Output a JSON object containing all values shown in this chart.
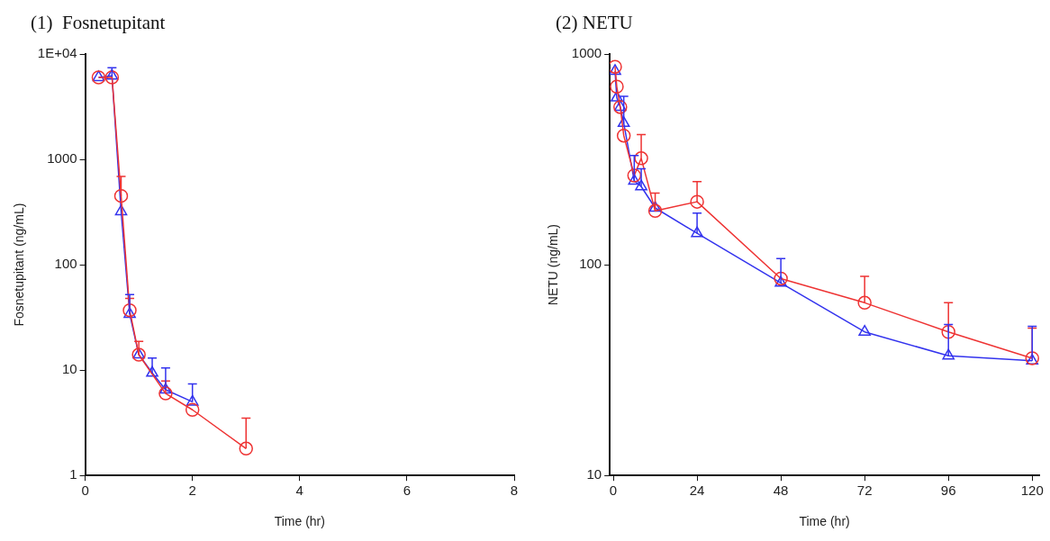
{
  "chart_data": [
    {
      "type": "line",
      "title": "(1)  Fosnetupitant",
      "xlabel": "Time (hr)",
      "ylabel": "Fosnetupitant (ng/mL)",
      "log": "y",
      "grid": false,
      "legend": false,
      "line_style": "solid",
      "xlim": [
        0,
        8
      ],
      "xticks": [
        0,
        2,
        4,
        6,
        8
      ],
      "ylim": [
        1,
        10000
      ],
      "yticks": [
        1,
        10,
        100,
        1000,
        {
          "value": 10000,
          "label": "1E+04"
        }
      ],
      "series": [
        {
          "color": "#ee3333",
          "marker": "circle",
          "x": [
            0.25,
            0.5,
            0.67,
            0.83,
            1,
            1.5,
            2,
            3
          ],
          "values": [
            6000,
            6000,
            450,
            37,
            14,
            6,
            4.2,
            1.8
          ],
          "errors": [
            null,
            null,
            [
              450,
              690
            ],
            [
              37,
              48
            ],
            [
              14,
              18.7
            ],
            [
              6,
              7.9
            ],
            null,
            [
              1.8,
              3.5
            ]
          ]
        },
        {
          "color": "#3333ee",
          "marker": "triangle",
          "x": [
            0.25,
            0.5,
            0.67,
            0.83,
            1,
            1.25,
            1.5,
            2
          ],
          "values": [
            6000,
            6200,
            320,
            34,
            14,
            9.4,
            6.5,
            5
          ],
          "errors": [
            null,
            [
              6200,
              7400
            ],
            null,
            [
              34,
              52
            ],
            null,
            [
              9.4,
              13
            ],
            [
              6.5,
              10.5
            ],
            [
              5,
              7.4
            ]
          ]
        }
      ]
    },
    {
      "type": "line",
      "title": "(2) NETU",
      "xlabel": "Time (hr)",
      "ylabel": "NETU (ng/mL)",
      "log": "y",
      "grid": false,
      "legend": false,
      "line_style": "solid",
      "xlim": [
        -1,
        122
      ],
      "xticks": [
        0,
        24,
        48,
        72,
        96,
        120
      ],
      "ylim": [
        10,
        1000
      ],
      "yticks": [
        10,
        100,
        1000
      ],
      "series": [
        {
          "color": "#ee3333",
          "marker": "circle",
          "x": [
            0.5,
            1,
            2,
            3,
            6,
            8,
            12,
            24,
            48,
            72,
            96,
            120
          ],
          "values": [
            870,
            700,
            560,
            410,
            265,
            320,
            180,
            199,
            86,
            66,
            48,
            36
          ],
          "errors": [
            null,
            null,
            null,
            null,
            null,
            [
              320,
              415
            ],
            [
              180,
              219
            ],
            [
              199,
              248
            ],
            null,
            [
              66,
              88
            ],
            [
              48,
              66
            ],
            [
              36,
              50
            ]
          ]
        },
        {
          "color": "#3333ee",
          "marker": "triangle",
          "x": [
            0.5,
            1,
            2,
            3,
            6,
            8,
            12,
            24,
            48,
            72,
            96,
            120
          ],
          "values": [
            830,
            620,
            560,
            470,
            250,
            235,
            186,
            141,
            82,
            48,
            37,
            35
          ],
          "errors": [
            null,
            null,
            null,
            [
              470,
              630
            ],
            [
              250,
              330
            ],
            [
              235,
              285
            ],
            null,
            [
              141,
              176
            ],
            [
              82,
              107
            ],
            null,
            [
              37,
              52
            ],
            [
              35,
              51
            ]
          ]
        }
      ]
    }
  ]
}
